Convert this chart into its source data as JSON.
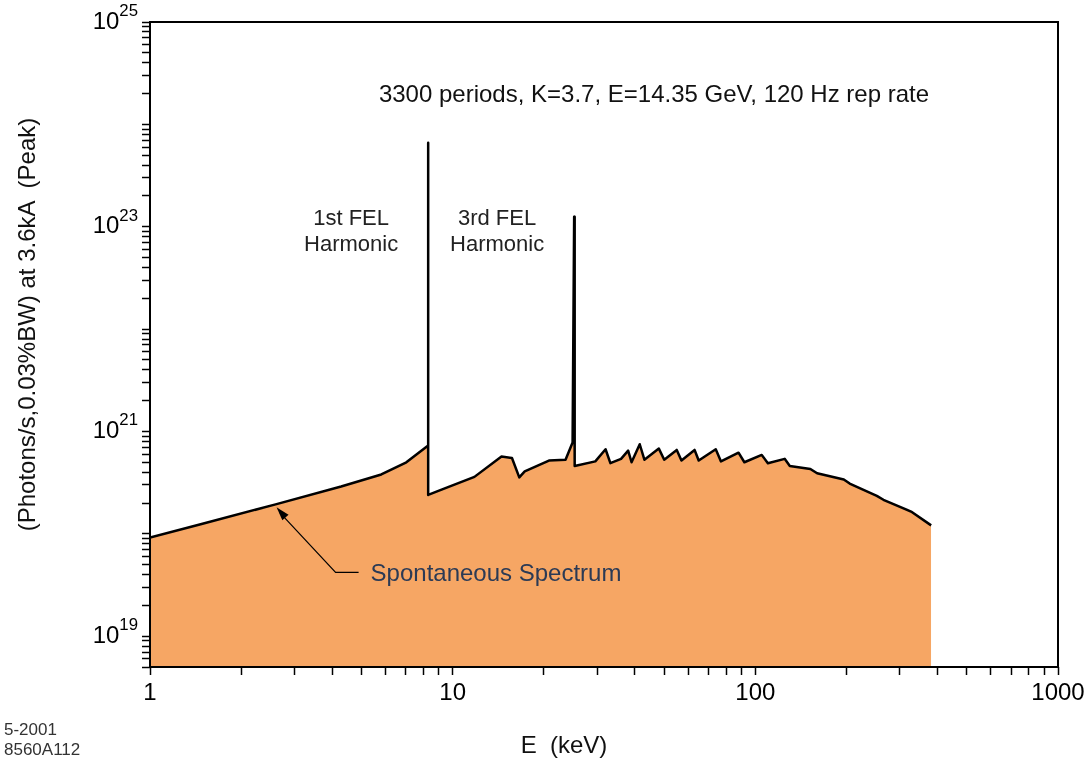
{
  "chart_data": {
    "type": "area",
    "title": "3300 periods, K=3.7, E=14.35 GeV, 120 Hz rep rate",
    "xlabel": "E  (keV)",
    "ylabel": "(Photons/s,0.03%BW) at 3.6kA  (Peak)",
    "log": "xy",
    "grid": false,
    "legend": false,
    "marker": "none",
    "line_style": "solid",
    "xlim": [
      1,
      1000
    ],
    "ylim": [
      5e+18,
      1e+25
    ],
    "xticks": [
      1,
      {
        "value": 2,
        "label": null
      },
      {
        "value": 3,
        "label": null
      },
      {
        "value": 4,
        "label": null
      },
      {
        "value": 5,
        "label": null
      },
      {
        "value": 6,
        "label": null
      },
      {
        "value": 7,
        "label": null
      },
      {
        "value": 8,
        "label": null
      },
      {
        "value": 9,
        "label": null
      },
      10,
      {
        "value": 20,
        "label": null
      },
      {
        "value": 30,
        "label": null
      },
      {
        "value": 40,
        "label": null
      },
      {
        "value": 50,
        "label": null
      },
      {
        "value": 60,
        "label": null
      },
      {
        "value": 70,
        "label": null
      },
      {
        "value": 80,
        "label": null
      },
      {
        "value": 90,
        "label": null
      },
      100,
      {
        "value": 200,
        "label": null
      },
      {
        "value": 300,
        "label": null
      },
      {
        "value": 400,
        "label": null
      },
      {
        "value": 500,
        "label": null
      },
      {
        "value": 600,
        "label": null
      },
      {
        "value": 700,
        "label": null
      },
      {
        "value": 800,
        "label": null
      },
      {
        "value": 900,
        "label": null
      },
      1000
    ],
    "yticks": [
      {
        "value": 5e+18,
        "label": null
      },
      {
        "value": 6e+18,
        "label": null
      },
      {
        "value": 7e+18,
        "label": null
      },
      {
        "value": 8e+18,
        "label": null
      },
      {
        "value": 9e+18,
        "label": null
      },
      {
        "value": 1e+19,
        "label": "10$^{19}$"
      },
      {
        "value": 2e+19,
        "label": null
      },
      {
        "value": 3e+19,
        "label": null
      },
      {
        "value": 4e+19,
        "label": null
      },
      {
        "value": 5e+19,
        "label": null
      },
      {
        "value": 6e+19,
        "label": null
      },
      {
        "value": 7e+19,
        "label": null
      },
      {
        "value": 8e+19,
        "label": null
      },
      {
        "value": 9e+19,
        "label": null
      },
      {
        "value": 1e+20,
        "label": null
      },
      {
        "value": 2e+20,
        "label": null
      },
      {
        "value": 3e+20,
        "label": null
      },
      {
        "value": 4e+20,
        "label": null
      },
      {
        "value": 5e+20,
        "label": null
      },
      {
        "value": 6e+20,
        "label": null
      },
      {
        "value": 7e+20,
        "label": null
      },
      {
        "value": 8e+20,
        "label": null
      },
      {
        "value": 9e+20,
        "label": null
      },
      {
        "value": 1e+21,
        "label": "10$^{21}$"
      },
      {
        "value": 2e+21,
        "label": null
      },
      {
        "value": 3e+21,
        "label": null
      },
      {
        "value": 4e+21,
        "label": null
      },
      {
        "value": 5e+21,
        "label": null
      },
      {
        "value": 6e+21,
        "label": null
      },
      {
        "value": 7e+21,
        "label": null
      },
      {
        "value": 8e+21,
        "label": null
      },
      {
        "value": 9e+21,
        "label": null
      },
      {
        "value": 1e+22,
        "label": null
      },
      {
        "value": 2e+22,
        "label": null
      },
      {
        "value": 3e+22,
        "label": null
      },
      {
        "value": 4e+22,
        "label": null
      },
      {
        "value": 5e+22,
        "label": null
      },
      {
        "value": 6e+22,
        "label": null
      },
      {
        "value": 7e+22,
        "label": null
      },
      {
        "value": 8e+22,
        "label": null
      },
      {
        "value": 9e+22,
        "label": null
      },
      {
        "value": 1e+23,
        "label": "10$^{23}$"
      },
      {
        "value": 2e+23,
        "label": null
      },
      {
        "value": 3e+23,
        "label": null
      },
      {
        "value": 4e+23,
        "label": null
      },
      {
        "value": 5e+23,
        "label": null
      },
      {
        "value": 6e+23,
        "label": null
      },
      {
        "value": 7e+23,
        "label": null
      },
      {
        "value": 8e+23,
        "label": null
      },
      {
        "value": 9e+23,
        "label": null
      },
      {
        "value": 1e+24,
        "label": null
      },
      {
        "value": 2e+24,
        "label": null
      },
      {
        "value": 3e+24,
        "label": null
      },
      {
        "value": 4e+24,
        "label": null
      },
      {
        "value": 5e+24,
        "label": null
      },
      {
        "value": 6e+24,
        "label": null
      },
      {
        "value": 7e+24,
        "label": null
      },
      {
        "value": 8e+24,
        "label": null
      },
      {
        "value": 9e+24,
        "label": null
      },
      {
        "value": 1e+25,
        "label": "10$^{25}$"
      }
    ],
    "series": [
      {
        "color": "#f6a664",
        "x": [
          1,
          1.47,
          2.6,
          4.28,
          5.81,
          7.03,
          8.3,
          8.3,
          8.3,
          9.19,
          11.8,
          14.5,
          15.7,
          16.6,
          17.3,
          20.8,
          23.6,
          24.9,
          25.2,
          25.3,
          29.6,
          32,
          33.2,
          36,
          38,
          39,
          41.5,
          43,
          48,
          50,
          55,
          57,
          63,
          65,
          74,
          77,
          88,
          92,
          105,
          110,
          125,
          130,
          152,
          160,
          196,
          205,
          252,
          265,
          327,
          381
        ],
        "values": [
          9.2e+19,
          1.24e+20,
          1.94e+20,
          2.9e+20,
          3.8e+20,
          5e+20,
          7.3e+20,
          6.6e+23,
          2.4e+20,
          2.7e+20,
          3.6e+20,
          5.7e+20,
          5.5e+20,
          3.56e+20,
          4.07e+20,
          5.2e+20,
          5.3e+20,
          7.8e+20,
          1.25e+23,
          4.6e+20,
          5.1e+20,
          6.7e+20,
          4.9e+20,
          5.4e+20,
          6.5e+20,
          5e+20,
          7.5e+20,
          5.3e+20,
          6.8e+20,
          5.3e+20,
          6.6e+20,
          5.2e+20,
          6.6e+20,
          5.2e+20,
          6.7e+20,
          5.1e+20,
          6.2e+20,
          5e+20,
          5.9e+20,
          4.9e+20,
          5.4e+20,
          4.6e+20,
          4.3e+20,
          3.9e+20,
          3.4e+20,
          3.1e+20,
          2.35e+20,
          2.15e+20,
          1.65e+20,
          1.21e+20
        ]
      }
    ],
    "annotations": [
      {
        "text": "1st FEL\nHarmonic",
        "x": 8.3,
        "y": 9.3e+22
      },
      {
        "text": "3rd FEL\nHarmonic",
        "x": 25.2,
        "y": 1.25e+23
      },
      {
        "text": "Spontaneous Spectrum",
        "x": 2.6,
        "y": 1.94e+20
      },
      "5-2001\n8560A112"
    ]
  }
}
